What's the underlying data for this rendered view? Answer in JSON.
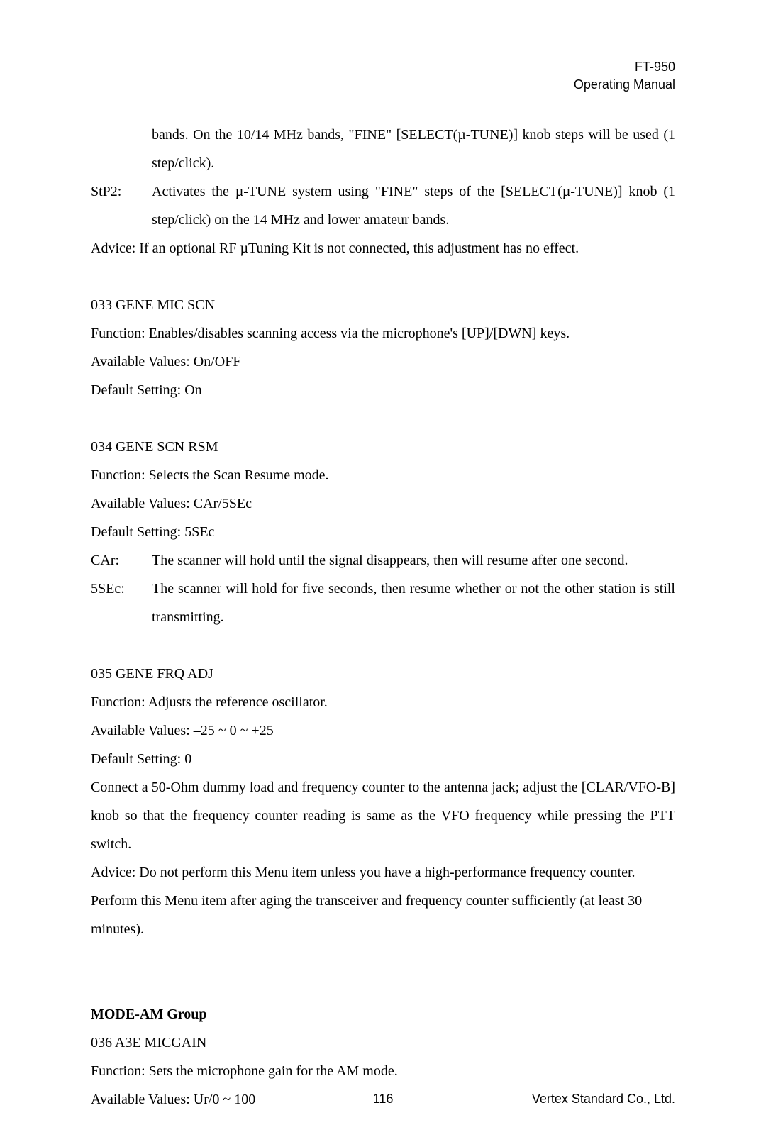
{
  "header": {
    "model": "FT-950",
    "subtitle": "Operating Manual"
  },
  "content": {
    "cont1": "bands. On the 10/14 MHz bands, \"FINE\" [SELECT(µ-TUNE)] knob steps will be used (1 step/click).",
    "stp2_label": "StP2:",
    "stp2_value": "Activates the µ-TUNE system using \"FINE\" steps of the [SELECT(µ-TUNE)] knob (1 step/click) on the 14 MHz and lower amateur bands.",
    "advice1": "Advice: If an optional RF µTuning Kit is not connected, this adjustment has no effect.",
    "m033_title": "033 GENE MIC SCN",
    "m033_func": "Function: Enables/disables scanning access via the microphone's [UP]/[DWN] keys.",
    "m033_avail": "Available Values: On/OFF",
    "m033_default": "Default Setting: On",
    "m034_title": "034 GENE SCN RSM",
    "m034_func": "Function: Selects the Scan Resume mode.",
    "m034_avail": "Available Values: CAr/5SEc",
    "m034_default": "Default Setting: 5SEc",
    "car_label": "CAr:",
    "car_value": "The scanner will hold until the signal disappears, then will resume after one second.",
    "sec5_label": "5SEc:",
    "sec5_value": "The scanner will hold for five seconds, then resume whether or not the other station is still transmitting.",
    "m035_title": "035 GENE FRQ ADJ",
    "m035_func": "Function: Adjusts the reference oscillator.",
    "m035_avail": "Available Values: –25 ~ 0 ~ +25",
    "m035_default": "Default Setting: 0",
    "m035_desc": "Connect a 50-Ohm dummy load and frequency counter to the antenna jack; adjust the [CLAR/VFO-B] knob so that the frequency counter reading is same as the VFO frequency while pressing the PTT switch.",
    "m035_advice": "Advice: Do not perform this Menu item unless you have a high-performance frequency counter. Perform this Menu item after aging the transceiver and frequency counter sufficiently (at least 30 minutes).",
    "group_title": "MODE-AM Group",
    "m036_title": "036 A3E MICGAIN",
    "m036_func": "Function: Sets the microphone gain for the AM mode.",
    "m036_avail": "Available Values: Ur/0 ~ 100"
  },
  "footer": {
    "page": "116",
    "company": "Vertex Standard Co., Ltd."
  }
}
